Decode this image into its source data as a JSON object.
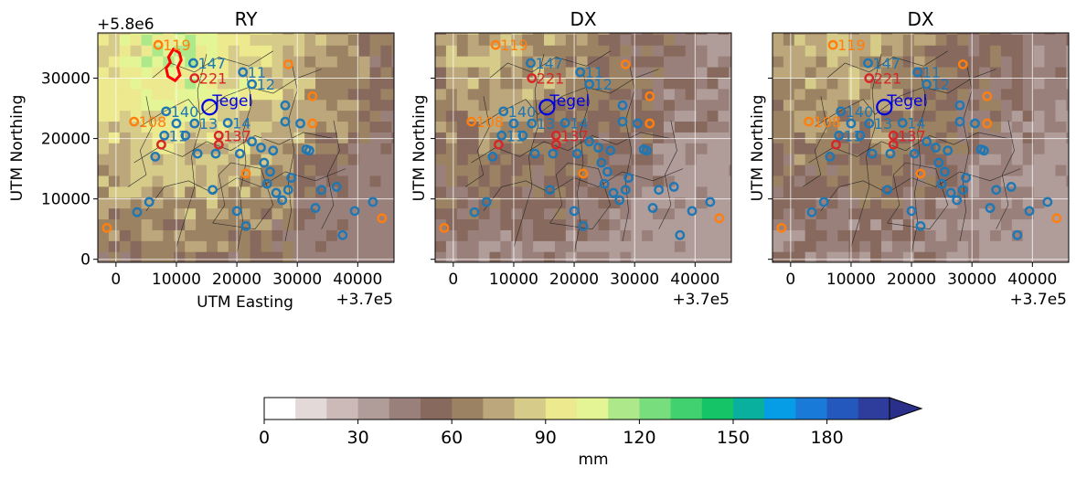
{
  "figure": {
    "offset_y_label": "+5.8e6",
    "offset_x_label": "+3.7e5",
    "station_label": "Tegel",
    "colorbar_unit": "mm"
  },
  "chart_data": [
    {
      "type": "heatmap",
      "title": "RY",
      "xlabel": "UTM Easting",
      "ylabel": "UTM Northing",
      "xlim": [
        -3000,
        46000
      ],
      "ylim": [
        -500,
        37500
      ],
      "xticks": [
        0,
        10000,
        20000,
        30000,
        40000
      ],
      "yticks": [
        0,
        10000,
        20000,
        30000
      ],
      "grid": true,
      "show_xlabel": true,
      "show_ytick_labels": true,
      "rain_center": [
        10000,
        33000
      ],
      "rain_peak_mm": 110
    },
    {
      "type": "heatmap",
      "title": "DX",
      "xlabel": "",
      "ylabel": "UTM Northing",
      "xlim": [
        -3000,
        46000
      ],
      "ylim": [
        -500,
        37500
      ],
      "xticks": [
        0,
        10000,
        20000,
        30000,
        40000
      ],
      "yticks": [
        0,
        10000,
        20000,
        30000
      ],
      "grid": true,
      "show_xlabel": false,
      "show_ytick_labels": false,
      "rain_center": [
        8000,
        34000
      ],
      "rain_peak_mm": 80
    },
    {
      "type": "heatmap",
      "title": "DX",
      "xlabel": "",
      "ylabel": "UTM Northing",
      "xlim": [
        -3000,
        46000
      ],
      "ylim": [
        -500,
        37500
      ],
      "xticks": [
        0,
        10000,
        20000,
        30000,
        40000
      ],
      "yticks": [
        0,
        10000,
        20000,
        30000
      ],
      "grid": true,
      "show_xlabel": false,
      "show_ytick_labels": false,
      "rain_center": [
        8000,
        34000
      ],
      "rain_peak_mm": 80
    }
  ],
  "stations": {
    "labeled": [
      {
        "id": "119",
        "x": 7000,
        "y": 35500,
        "cat": "orange"
      },
      {
        "id": "147",
        "x": 12800,
        "y": 32500,
        "cat": "blue"
      },
      {
        "id": "221",
        "x": 13000,
        "y": 30000,
        "cat": "red"
      },
      {
        "id": "140",
        "x": 8300,
        "y": 24500,
        "cat": "blue"
      },
      {
        "id": "108",
        "x": 3000,
        "y": 22800,
        "cat": "orange"
      },
      {
        "id": "137",
        "x": 17000,
        "y": 20500,
        "cat": "red"
      },
      {
        "id": "11",
        "x": 8000,
        "y": 20500,
        "cat": "blue"
      },
      {
        "id": "11",
        "x": 21000,
        "y": 31000,
        "cat": "blue"
      },
      {
        "id": "12",
        "x": 22500,
        "y": 29000,
        "cat": "blue"
      },
      {
        "id": "13",
        "x": 13000,
        "y": 22500,
        "cat": "blue"
      },
      {
        "id": "14",
        "x": 18500,
        "y": 22600,
        "cat": "blue"
      }
    ],
    "unlabeled": [
      {
        "x": -1500,
        "y": 5200,
        "cat": "orange"
      },
      {
        "x": 3500,
        "y": 7800,
        "cat": "blue"
      },
      {
        "x": 5500,
        "y": 9500,
        "cat": "blue"
      },
      {
        "x": 6500,
        "y": 17000,
        "cat": "blue"
      },
      {
        "x": 7500,
        "y": 19000,
        "cat": "red"
      },
      {
        "x": 10000,
        "y": 22500,
        "cat": "blue"
      },
      {
        "x": 11500,
        "y": 20500,
        "cat": "blue"
      },
      {
        "x": 13500,
        "y": 17500,
        "cat": "blue"
      },
      {
        "x": 17000,
        "y": 19000,
        "cat": "red"
      },
      {
        "x": 16500,
        "y": 17500,
        "cat": "blue"
      },
      {
        "x": 16000,
        "y": 11500,
        "cat": "blue"
      },
      {
        "x": 20000,
        "y": 8000,
        "cat": "blue"
      },
      {
        "x": 21500,
        "y": 14200,
        "cat": "orange"
      },
      {
        "x": 21500,
        "y": 5500,
        "cat": "blue"
      },
      {
        "x": 22500,
        "y": 19500,
        "cat": "blue"
      },
      {
        "x": 24000,
        "y": 18500,
        "cat": "blue"
      },
      {
        "x": 24500,
        "y": 16000,
        "cat": "blue"
      },
      {
        "x": 25500,
        "y": 14500,
        "cat": "blue"
      },
      {
        "x": 25000,
        "y": 12500,
        "cat": "blue"
      },
      {
        "x": 26000,
        "y": 18000,
        "cat": "blue"
      },
      {
        "x": 26500,
        "y": 11000,
        "cat": "blue"
      },
      {
        "x": 27500,
        "y": 9800,
        "cat": "blue"
      },
      {
        "x": 28000,
        "y": 25500,
        "cat": "blue"
      },
      {
        "x": 28000,
        "y": 22800,
        "cat": "blue"
      },
      {
        "x": 28500,
        "y": 32300,
        "cat": "orange"
      },
      {
        "x": 29000,
        "y": 13500,
        "cat": "blue"
      },
      {
        "x": 28500,
        "y": 11500,
        "cat": "blue"
      },
      {
        "x": 30500,
        "y": 22500,
        "cat": "blue"
      },
      {
        "x": 31500,
        "y": 18200,
        "cat": "blue"
      },
      {
        "x": 32000,
        "y": 18000,
        "cat": "blue"
      },
      {
        "x": 32500,
        "y": 27000,
        "cat": "orange"
      },
      {
        "x": 32500,
        "y": 22500,
        "cat": "orange"
      },
      {
        "x": 33000,
        "y": 8500,
        "cat": "blue"
      },
      {
        "x": 34000,
        "y": 11500,
        "cat": "blue"
      },
      {
        "x": 36500,
        "y": 12000,
        "cat": "blue"
      },
      {
        "x": 37500,
        "y": 4000,
        "cat": "blue"
      },
      {
        "x": 39500,
        "y": 8000,
        "cat": "blue"
      },
      {
        "x": 42500,
        "y": 9500,
        "cat": "blue"
      },
      {
        "x": 44000,
        "y": 6800,
        "cat": "orange"
      },
      {
        "x": 20500,
        "y": 17500,
        "cat": "blue"
      }
    ],
    "tegel": {
      "x": 15500,
      "y": 25200
    }
  },
  "colorbar": {
    "label": "mm",
    "levels": [
      0,
      10,
      20,
      30,
      40,
      50,
      60,
      70,
      80,
      90,
      100,
      110,
      120,
      130,
      140,
      150,
      160,
      170,
      180,
      190,
      200
    ],
    "tick_values": [
      0,
      30,
      60,
      90,
      120,
      150,
      180
    ],
    "extend": "max",
    "colors": [
      "#ffffff",
      "#e3d9d8",
      "#cbbab8",
      "#b09c98",
      "#9a807b",
      "#87695e",
      "#9b8262",
      "#bba77b",
      "#d6cb89",
      "#ece98e",
      "#e4f595",
      "#ade98a",
      "#78dd7c",
      "#41d16e",
      "#14c466",
      "#0ab09e",
      "#079ce6",
      "#1a7ad8",
      "#2458bc",
      "#2e3c9c",
      "#2a2f8a"
    ]
  },
  "colors": {
    "blue": "#1f77b4",
    "orange": "#ff7f0e",
    "red": "#d62728",
    "tegel": "#0000e0",
    "rain_outline": "#ff0000"
  }
}
